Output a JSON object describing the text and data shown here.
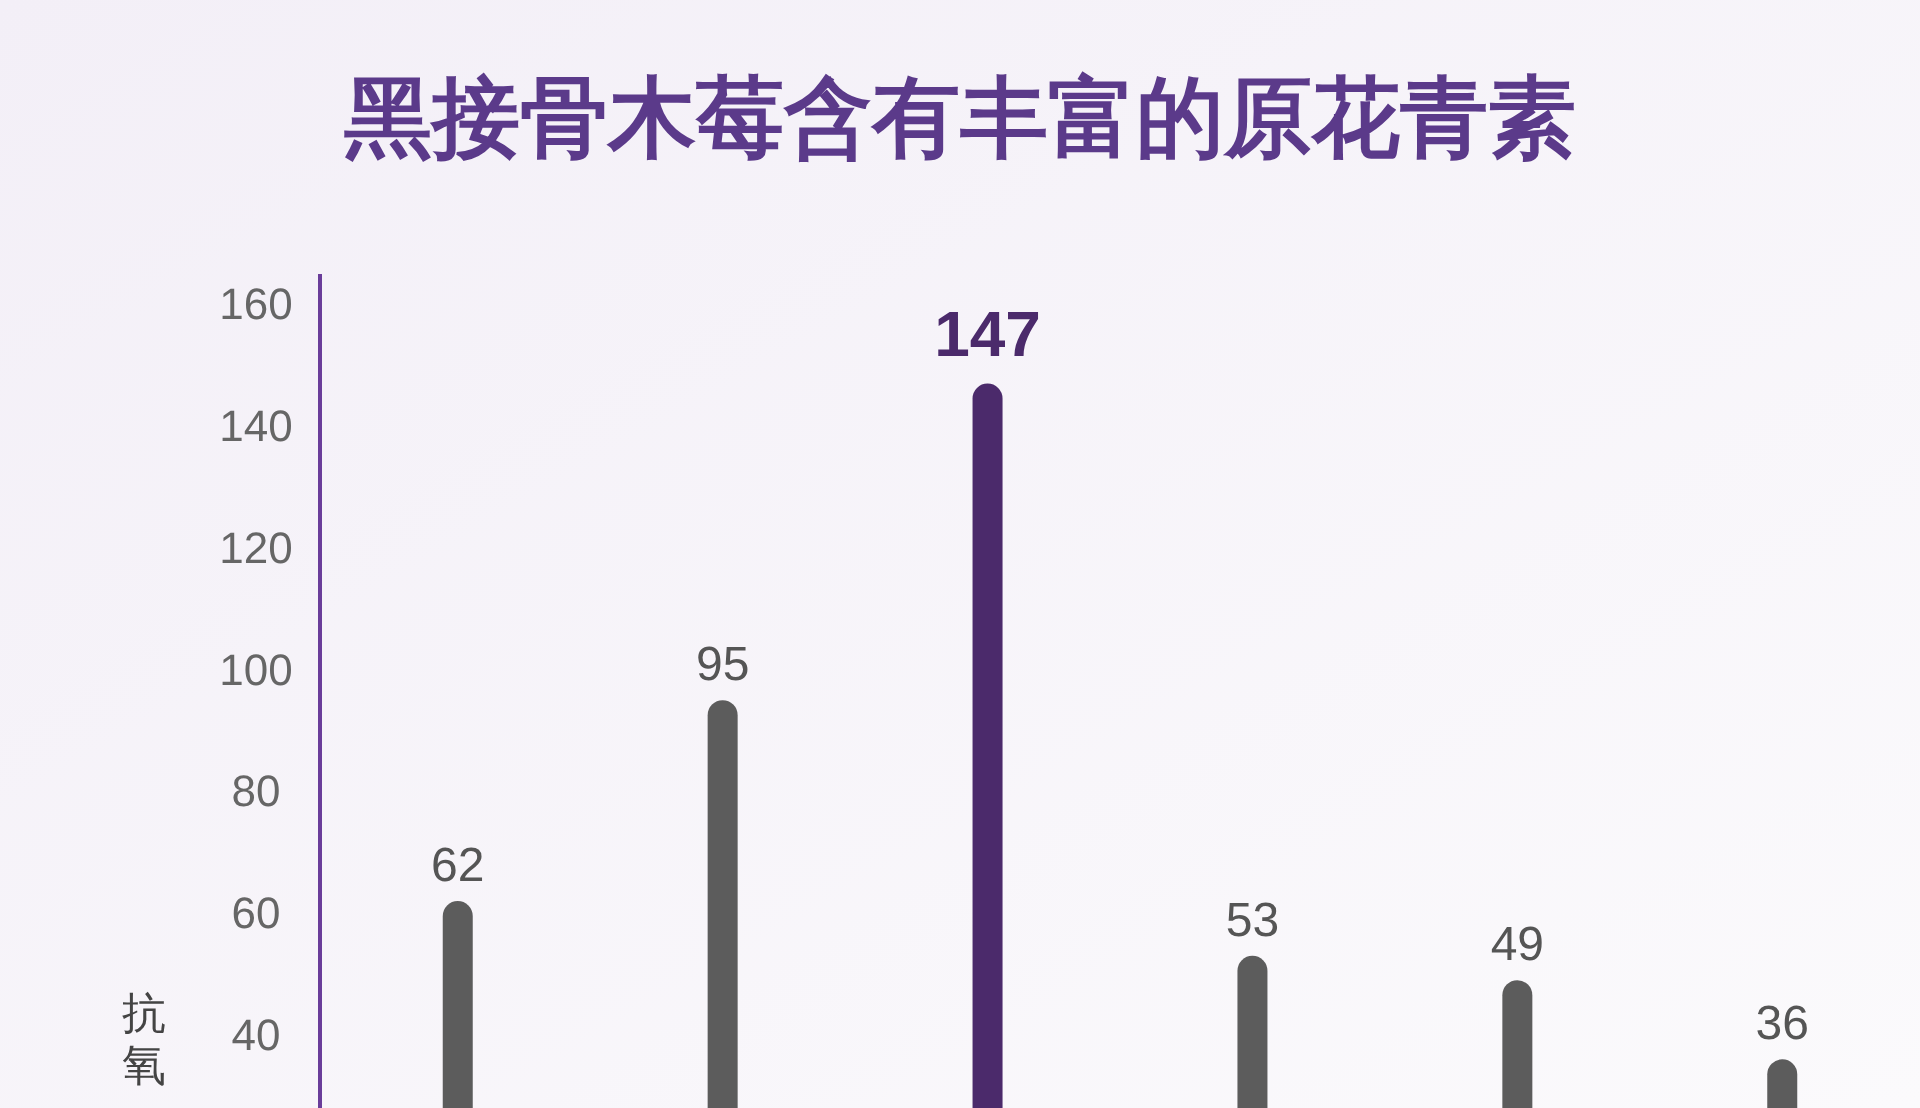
{
  "chart_data": {
    "type": "bar",
    "title": "黑接骨木莓含有丰富的原花青素",
    "ylabel": "抗氧",
    "categories": [
      null,
      null,
      null,
      null,
      null,
      null
    ],
    "values": [
      62,
      95,
      147,
      53,
      49,
      36
    ],
    "colors": [
      "#5c5c5c",
      "#5c5c5c",
      "#4b2a6b",
      "#5c5c5c",
      "#5c5c5c",
      "#5c5c5c"
    ],
    "ylim": [
      28,
      165
    ],
    "yticks": [
      40,
      60,
      80,
      100,
      120,
      140,
      160
    ],
    "data_labels": true
  }
}
